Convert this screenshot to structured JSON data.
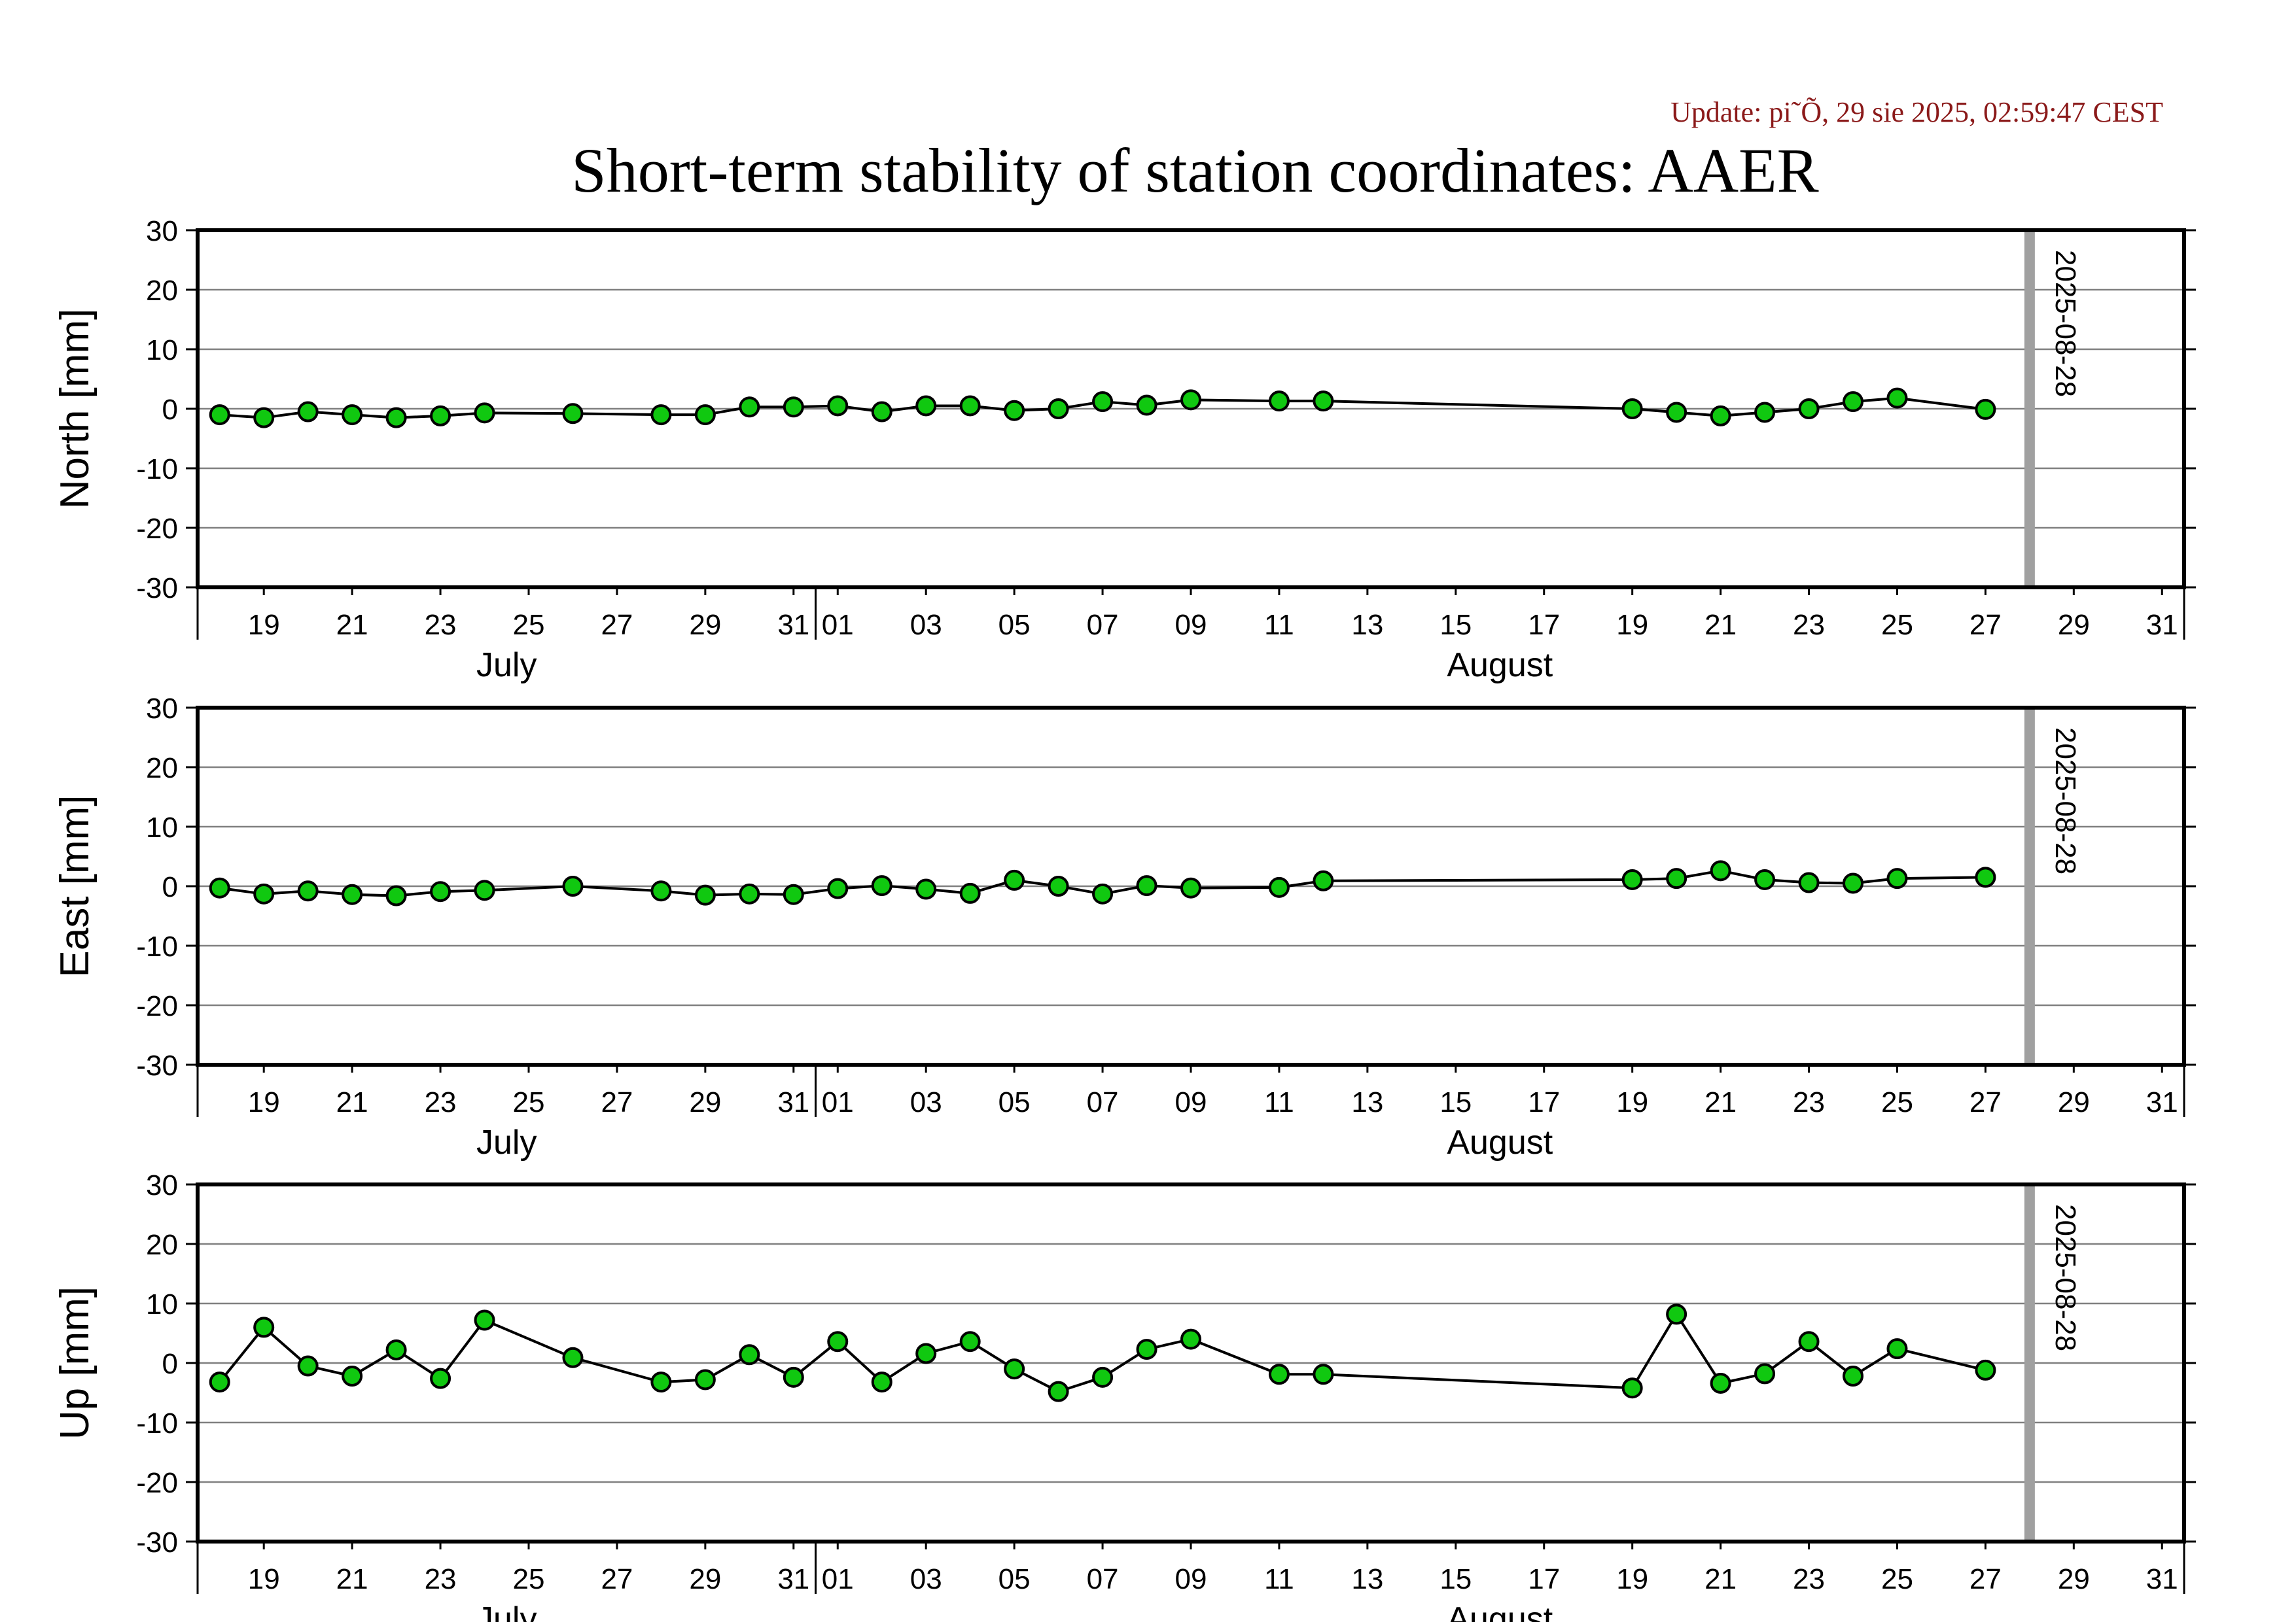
{
  "update_text": "Update: pi˜Õ, 29 sie 2025, 02:59:47 CEST",
  "title": "Short-term stability of station coordinates: AAER",
  "colors": {
    "marker_fill": "#10c810",
    "marker_stroke": "#000000",
    "line": "#000000",
    "grid": "#808080",
    "frame": "#000000",
    "vline": "#a0a0a0",
    "update_text": "#8b1a1a"
  },
  "chart_data": [
    {
      "type": "line",
      "ylabel": "North [mm]",
      "ylim": [
        -30,
        30
      ],
      "yticks": [
        30,
        20,
        10,
        0,
        -10,
        -20,
        -30
      ],
      "grid": true,
      "xlim": [
        "2025-07-17.5",
        "2025-08-31.5"
      ],
      "x_tick_labels": [
        "19",
        "21",
        "23",
        "25",
        "27",
        "29",
        "31",
        "01",
        "03",
        "05",
        "07",
        "09",
        "11",
        "13",
        "15",
        "17",
        "19",
        "21",
        "23",
        "25",
        "27",
        "29",
        "31"
      ],
      "x_month_labels": [
        "July",
        "August"
      ],
      "vline": {
        "x": "2025-08-28",
        "label": "2025-08-28"
      },
      "series": [
        {
          "x": [
            "2025-07-18",
            "2025-07-19",
            "2025-07-20",
            "2025-07-21",
            "2025-07-22",
            "2025-07-23",
            "2025-07-24",
            "2025-07-26",
            "2025-07-28",
            "2025-07-29",
            "2025-07-30",
            "2025-07-31",
            "2025-08-01",
            "2025-08-02",
            "2025-08-03",
            "2025-08-04",
            "2025-08-05",
            "2025-08-06",
            "2025-08-07",
            "2025-08-08",
            "2025-08-09",
            "2025-08-11",
            "2025-08-12",
            "2025-08-19",
            "2025-08-20",
            "2025-08-21",
            "2025-08-22",
            "2025-08-23",
            "2025-08-24",
            "2025-08-25",
            "2025-08-27"
          ],
          "values": [
            -1,
            -1.5,
            -0.5,
            -1,
            -1.5,
            -1.2,
            -0.7,
            -0.8,
            -1,
            -1,
            0.3,
            0.3,
            0.5,
            -0.5,
            0.5,
            0.5,
            -0.3,
            0,
            1.2,
            0.6,
            1.5,
            1.3,
            1.3,
            0,
            -0.6,
            -1.2,
            -0.6,
            0,
            1.2,
            1.8,
            -0.1
          ]
        }
      ]
    },
    {
      "type": "line",
      "ylabel": "East [mm]",
      "ylim": [
        -30,
        30
      ],
      "yticks": [
        30,
        20,
        10,
        0,
        -10,
        -20,
        -30
      ],
      "grid": true,
      "xlim": [
        "2025-07-17.5",
        "2025-08-31.5"
      ],
      "x_tick_labels": [
        "19",
        "21",
        "23",
        "25",
        "27",
        "29",
        "31",
        "01",
        "03",
        "05",
        "07",
        "09",
        "11",
        "13",
        "15",
        "17",
        "19",
        "21",
        "23",
        "25",
        "27",
        "29",
        "31"
      ],
      "x_month_labels": [
        "July",
        "August"
      ],
      "vline": {
        "x": "2025-08-28",
        "label": "2025-08-28"
      },
      "series": [
        {
          "x": [
            "2025-07-18",
            "2025-07-19",
            "2025-07-20",
            "2025-07-21",
            "2025-07-22",
            "2025-07-23",
            "2025-07-24",
            "2025-07-26",
            "2025-07-28",
            "2025-07-29",
            "2025-07-30",
            "2025-07-31",
            "2025-08-01",
            "2025-08-02",
            "2025-08-03",
            "2025-08-04",
            "2025-08-05",
            "2025-08-06",
            "2025-08-07",
            "2025-08-08",
            "2025-08-09",
            "2025-08-11",
            "2025-08-12",
            "2025-08-19",
            "2025-08-20",
            "2025-08-21",
            "2025-08-22",
            "2025-08-23",
            "2025-08-24",
            "2025-08-25",
            "2025-08-27"
          ],
          "values": [
            -0.3,
            -1.3,
            -0.8,
            -1.4,
            -1.6,
            -0.9,
            -0.7,
            0,
            -0.8,
            -1.5,
            -1.3,
            -1.4,
            -0.4,
            0.1,
            -0.5,
            -1.2,
            1,
            0,
            -1.3,
            0.1,
            -0.3,
            -0.2,
            0.9,
            1.1,
            1.3,
            2.6,
            1.1,
            0.6,
            0.5,
            1.3,
            1.5
          ]
        }
      ]
    },
    {
      "type": "line",
      "ylabel": "Up [mm]",
      "ylim": [
        -30,
        30
      ],
      "yticks": [
        30,
        20,
        10,
        0,
        -10,
        -20,
        -30
      ],
      "grid": true,
      "xlim": [
        "2025-07-17.5",
        "2025-08-31.5"
      ],
      "x_tick_labels": [
        "19",
        "21",
        "23",
        "25",
        "27",
        "29",
        "31",
        "01",
        "03",
        "05",
        "07",
        "09",
        "11",
        "13",
        "15",
        "17",
        "19",
        "21",
        "23",
        "25",
        "27",
        "29",
        "31"
      ],
      "x_month_labels": [
        "July",
        "August"
      ],
      "vline": {
        "x": "2025-08-28",
        "label": "2025-08-28"
      },
      "series": [
        {
          "x": [
            "2025-07-18",
            "2025-07-19",
            "2025-07-20",
            "2025-07-21",
            "2025-07-22",
            "2025-07-23",
            "2025-07-24",
            "2025-07-26",
            "2025-07-28",
            "2025-07-29",
            "2025-07-30",
            "2025-07-31",
            "2025-08-01",
            "2025-08-02",
            "2025-08-03",
            "2025-08-04",
            "2025-08-05",
            "2025-08-06",
            "2025-08-07",
            "2025-08-08",
            "2025-08-09",
            "2025-08-11",
            "2025-08-12",
            "2025-08-19",
            "2025-08-20",
            "2025-08-21",
            "2025-08-22",
            "2025-08-23",
            "2025-08-24",
            "2025-08-25",
            "2025-08-27"
          ],
          "values": [
            -3.2,
            6,
            -0.5,
            -2.2,
            2.2,
            -2.6,
            7.2,
            0.9,
            -3.2,
            -2.8,
            1.4,
            -2.4,
            3.6,
            -3.2,
            1.6,
            3.6,
            -1,
            -4.8,
            -2.4,
            2.3,
            4,
            -1.9,
            -1.9,
            -4.2,
            8.2,
            -3.4,
            -1.8,
            3.6,
            -2.2,
            2.4,
            -1.2
          ]
        }
      ]
    }
  ]
}
